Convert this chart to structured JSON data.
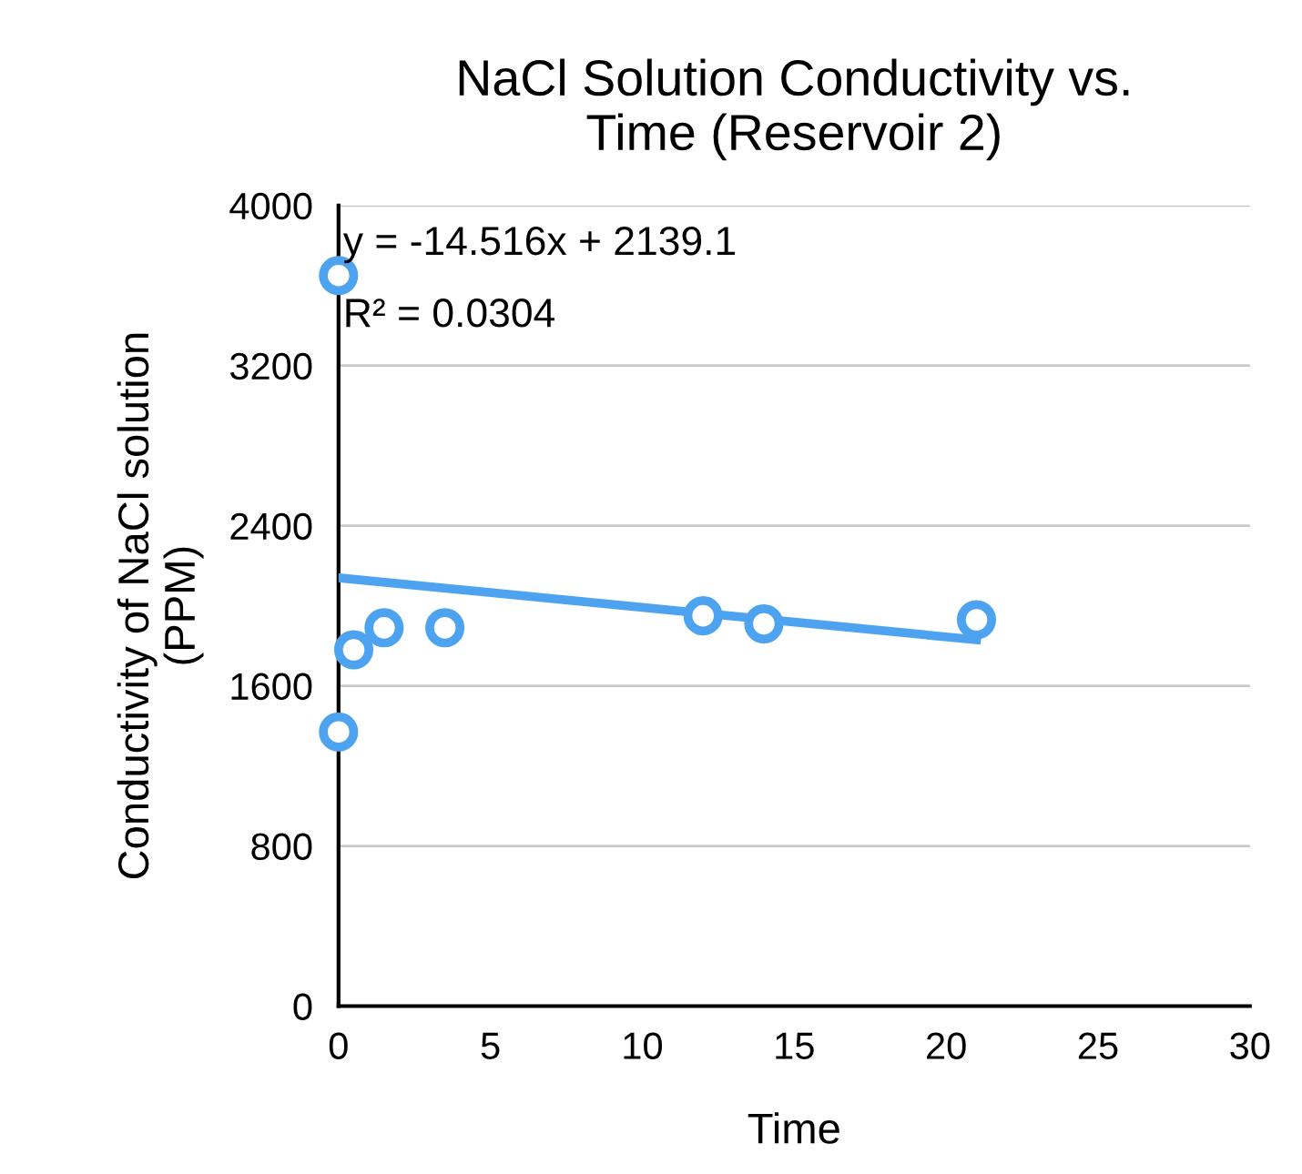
{
  "chart_data": {
    "type": "scatter",
    "title": "NaCl Solution Conductivity vs.\nTime (Reservoir 2)",
    "xlabel": "Time",
    "ylabel": "Conductivity of NaCl solution\n(PPM)",
    "series": [
      {
        "color": "#4da3f0",
        "x": [
          0,
          0,
          0.5,
          1.5,
          3.5,
          12,
          14,
          21
        ],
        "values": [
          3650,
          1370,
          1780,
          1890,
          1890,
          1950,
          1910,
          1930
        ]
      },
      {
        "type": "line",
        "marker": "none",
        "color": "#4da3f0",
        "x": [
          0,
          21
        ],
        "values": [
          2140,
          1830
        ]
      }
    ],
    "annotations": [
      "y = -14.516x + 2139.1",
      "R² = 0.0304"
    ],
    "xlim": [
      0,
      30
    ],
    "xticks": [
      0,
      5,
      10,
      15,
      20,
      25,
      30
    ],
    "ylim": [
      0,
      4000
    ],
    "yticks": [
      0,
      800,
      1600,
      2400,
      3200,
      4000
    ],
    "grid": "y",
    "marker": "circle"
  }
}
